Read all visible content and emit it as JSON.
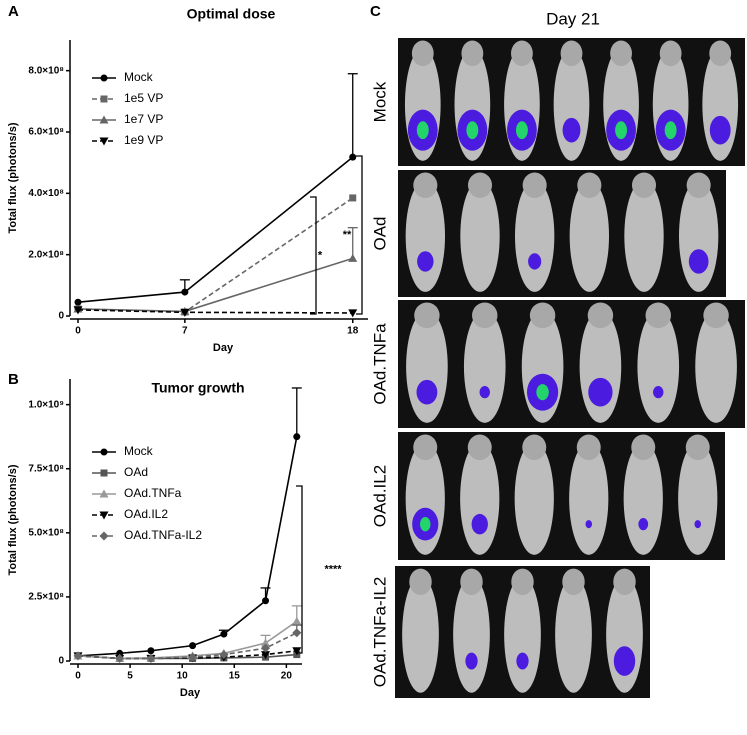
{
  "chart_data": [
    {
      "type": "line",
      "panel": "A",
      "title": "Optimal dose",
      "x_label": "Day",
      "y_label": "Total flux (photons/s)",
      "x": [
        0,
        7,
        18
      ],
      "xlim": [
        0,
        19
      ],
      "xticks": [
        0,
        7,
        18
      ],
      "ylim": [
        0,
        900000000
      ],
      "yticks": [
        0,
        {
          "value": 200000000,
          "label": "2.0×10⁸"
        },
        {
          "value": 400000000,
          "label": "4.0×10⁸"
        },
        {
          "value": 600000000,
          "label": "6.0×10⁸"
        },
        {
          "value": 800000000,
          "label": "8.0×10⁸"
        }
      ],
      "series": [
        {
          "name": "Mock",
          "color": "#000000",
          "marker": "circle",
          "dashed": false,
          "values": [
            45000000,
            78000000,
            518000000
          ],
          "errors": [
            null,
            40000000,
            272000000
          ]
        },
        {
          "name": "1e5 VP",
          "color": "#666666",
          "marker": "square",
          "dashed": true,
          "values": [
            23000000,
            13000000,
            385000000
          ],
          "errors": [
            null,
            null,
            null
          ]
        },
        {
          "name": "1e7 VP",
          "color": "#666666",
          "marker": "triangle",
          "dashed": false,
          "values": [
            23000000,
            15000000,
            188000000
          ],
          "errors": [
            null,
            null,
            100000000
          ]
        },
        {
          "name": "1e9 VP",
          "color": "#000000",
          "marker": "triangle-down",
          "dashed": true,
          "values": [
            20000000,
            12000000,
            10000000
          ],
          "errors": [
            null,
            null,
            null
          ]
        }
      ],
      "annotations": [
        "**",
        "*"
      ]
    },
    {
      "type": "line",
      "panel": "B",
      "title": "Tumor growth",
      "x_label": "Day",
      "y_label": "Total flux (photons/s)",
      "x": [
        0,
        4,
        7,
        11,
        14,
        18,
        21
      ],
      "xlim": [
        0,
        21.5
      ],
      "xticks": [
        0,
        5,
        10,
        15,
        20
      ],
      "ylim": [
        0,
        1100000000
      ],
      "yticks": [
        0,
        {
          "value": 250000000,
          "label": "2.5×10⁸"
        },
        {
          "value": 500000000,
          "label": "5.0×10⁸"
        },
        {
          "value": 750000000,
          "label": "7.5×10⁸"
        },
        {
          "value": 1000000000,
          "label": "1.0×10⁹"
        }
      ],
      "series": [
        {
          "name": "Mock",
          "color": "#000000",
          "marker": "circle",
          "dashed": false,
          "values": [
            20000000,
            30000000,
            40000000,
            60000000,
            105000000,
            235000000,
            875000000
          ],
          "errors": [
            null,
            null,
            null,
            null,
            15000000,
            50000000,
            190000000
          ]
        },
        {
          "name": "OAd",
          "color": "#555555",
          "marker": "square",
          "dashed": false,
          "values": [
            20000000,
            10000000,
            10000000,
            10000000,
            12000000,
            15000000,
            25000000
          ],
          "errors": [
            null,
            null,
            null,
            null,
            null,
            null,
            null
          ]
        },
        {
          "name": "OAd.TNFa",
          "color": "#999999",
          "marker": "triangle",
          "dashed": false,
          "values": [
            20000000,
            10000000,
            12000000,
            20000000,
            30000000,
            70000000,
            155000000
          ],
          "errors": [
            null,
            null,
            null,
            null,
            null,
            30000000,
            60000000
          ]
        },
        {
          "name": "OAd.IL2",
          "color": "#000000",
          "marker": "triangle-down",
          "dashed": true,
          "values": [
            20000000,
            10000000,
            10000000,
            12000000,
            15000000,
            25000000,
            40000000
          ],
          "errors": [
            null,
            null,
            null,
            null,
            null,
            null,
            null
          ]
        },
        {
          "name": "OAd.TNFa-IL2",
          "color": "#666666",
          "marker": "diamond",
          "dashed": true,
          "values": [
            20000000,
            10000000,
            10000000,
            15000000,
            25000000,
            50000000,
            110000000
          ],
          "errors": [
            null,
            null,
            null,
            null,
            null,
            null,
            30000000
          ]
        }
      ],
      "annotations": [
        "****"
      ]
    }
  ],
  "panel_c": {
    "letter": "C",
    "title": "Day 21",
    "rows": [
      "Mock",
      "OAd",
      "OAd.TNFa",
      "OAd.IL2",
      "OAd.TNFa-IL2"
    ]
  }
}
